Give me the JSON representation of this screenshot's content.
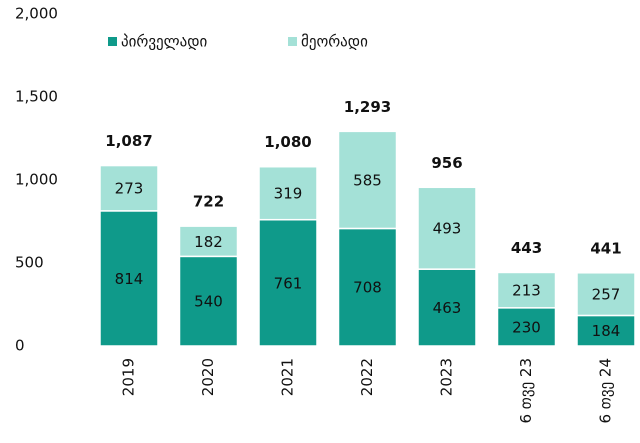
{
  "chart_data": {
    "type": "stacked_bar",
    "categories": [
      "2019",
      "2020",
      "2021",
      "2022",
      "2023",
      "6 თვე 23",
      "6 თვე 24"
    ],
    "series": [
      {
        "name": "პირველადი",
        "color": "#0f9a8a",
        "values": [
          814,
          540,
          761,
          708,
          463,
          230,
          184
        ]
      },
      {
        "name": "მეორადი",
        "color": "#a4e1d7",
        "values": [
          273,
          182,
          319,
          585,
          493,
          213,
          257
        ]
      }
    ],
    "totals": {
      "values": [
        1087,
        722,
        1080,
        1293,
        956,
        443,
        441
      ],
      "value_labels": [
        "1,087",
        "722",
        "1,080",
        "1,293",
        "956",
        "443",
        "441"
      ]
    },
    "ylim": [
      0,
      2000
    ],
    "yticks": [
      0,
      500,
      {
        "value": 1000,
        "label": "1,000"
      },
      {
        "value": 1500,
        "label": "1,500"
      },
      {
        "value": 2000,
        "label": "2,000"
      }
    ],
    "grid": false
  }
}
